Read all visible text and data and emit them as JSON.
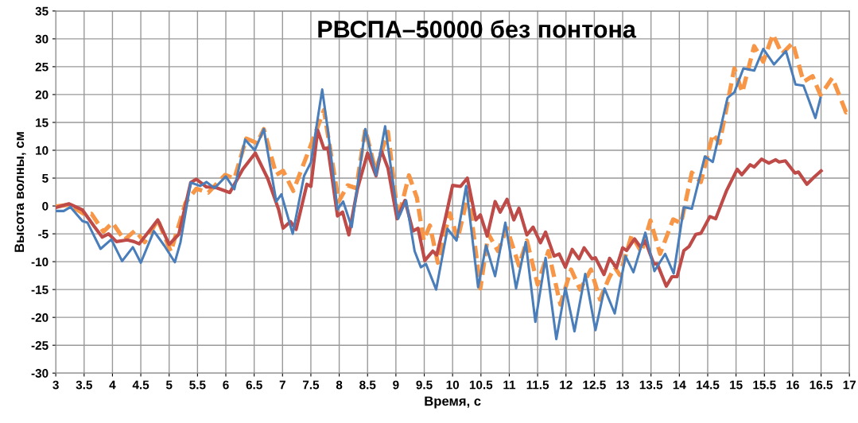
{
  "chart_data": {
    "type": "line",
    "title": "РВСПА–50000 без понтона",
    "xlabel": "Время, с",
    "ylabel": "Высота волны, см",
    "xlim": [
      3,
      17
    ],
    "xticks": [
      3,
      3.5,
      4,
      4.5,
      5,
      5.5,
      6,
      6.5,
      7,
      7.5,
      8,
      8.5,
      9,
      9.5,
      10,
      10.5,
      11,
      11.5,
      12,
      12.5,
      13,
      13.5,
      14,
      14.5,
      15,
      15.5,
      16,
      16.5,
      17
    ],
    "ylim": [
      -30,
      35
    ],
    "yticks": [
      -30,
      -25,
      -20,
      -15,
      -10,
      -5,
      0,
      5,
      10,
      15,
      20,
      25,
      30,
      35
    ],
    "grid": true,
    "legend": false,
    "marker": "none",
    "series": [
      {
        "color": "#4a7ebb",
        "line_style": "solid",
        "x": [
          3,
          3.14,
          3.26,
          3.47,
          3.56,
          3.79,
          3.98,
          4.17,
          4.36,
          4.5,
          4.73,
          4.92,
          5.1,
          5.2,
          5.38,
          5.55,
          5.66,
          5.8,
          6.0,
          6.15,
          6.34,
          6.51,
          6.67,
          6.89,
          6.98,
          7.18,
          7.38,
          7.5,
          7.7,
          7.8,
          7.97,
          8.07,
          8.22,
          8.46,
          8.65,
          8.81,
          9.04,
          9.18,
          9.33,
          9.44,
          9.53,
          9.71,
          9.91,
          10.07,
          10.24,
          10.45,
          10.59,
          10.75,
          10.93,
          11.12,
          11.29,
          11.46,
          11.64,
          11.83,
          11.99,
          12.15,
          12.34,
          12.52,
          12.68,
          12.86,
          13.05,
          13.19,
          13.4,
          13.56,
          13.75,
          13.9,
          14.08,
          14.22,
          14.45,
          14.59,
          14.85,
          14.97,
          15.13,
          15.32,
          15.48,
          15.67,
          15.88,
          16.05,
          16.19,
          16.4,
          16.49
        ],
        "values": [
          -0.9,
          -0.9,
          -0.2,
          -2.7,
          -3,
          -7.7,
          -6,
          -9.9,
          -7.4,
          -10.2,
          -4.5,
          -7.2,
          -10.1,
          -6.5,
          4.2,
          3.6,
          4.3,
          3.2,
          5.3,
          3,
          11.9,
          10,
          13.8,
          0.8,
          2.1,
          -5,
          5.4,
          7.8,
          20.9,
          13.6,
          -0.6,
          0.8,
          -3.8,
          13.8,
          5.5,
          14.3,
          -2.3,
          1,
          -8.1,
          -11,
          -10.4,
          -15,
          -4.1,
          -6.2,
          3.6,
          -14.6,
          -7.1,
          -12.6,
          -3,
          -14.8,
          -6.5,
          -20.8,
          -9.3,
          -23.9,
          -14.7,
          -22.5,
          -12.2,
          -22.3,
          -14.8,
          -19.3,
          -9,
          -11.9,
          -4.8,
          -11.7,
          -8.6,
          -12.1,
          -0.2,
          -0.5,
          8.9,
          7.9,
          19.4,
          20.4,
          24.7,
          24.3,
          28.2,
          25.4,
          27.8,
          21.8,
          21.6,
          15.8,
          19.4
        ]
      },
      {
        "color": "#be4b48",
        "line_style": "solid",
        "x": [
          3,
          3.23,
          3.47,
          3.68,
          3.82,
          3.93,
          4.07,
          4.26,
          4.38,
          4.47,
          4.64,
          4.8,
          5.0,
          5.17,
          5.38,
          5.48,
          5.66,
          5.8,
          6.07,
          6.3,
          6.52,
          6.74,
          6.93,
          7.01,
          7.14,
          7.24,
          7.43,
          7.5,
          7.62,
          7.73,
          7.8,
          7.97,
          8.06,
          8.17,
          8.32,
          8.5,
          8.65,
          8.74,
          8.86,
          9.02,
          9.16,
          9.3,
          9.39,
          9.51,
          9.65,
          9.72,
          9.86,
          10.0,
          10.14,
          10.26,
          10.41,
          10.49,
          10.61,
          10.75,
          10.84,
          10.96,
          11.08,
          11.17,
          11.31,
          11.42,
          11.55,
          11.64,
          11.79,
          11.88,
          11.99,
          12.11,
          12.23,
          12.32,
          12.46,
          12.52,
          12.67,
          12.77,
          12.89,
          13.0,
          13.07,
          13.21,
          13.31,
          13.4,
          13.55,
          13.61,
          13.77,
          13.87,
          13.96,
          14.08,
          14.17,
          14.29,
          14.38,
          14.54,
          14.64,
          14.83,
          15.02,
          15.1,
          15.25,
          15.32,
          15.45,
          15.58,
          15.7,
          15.76,
          15.87,
          16.04,
          16.1,
          16.25,
          16.37,
          16.5
        ],
        "values": [
          -0.3,
          0.4,
          -0.7,
          -3.7,
          -5.6,
          -5,
          -6.4,
          -6.1,
          -6.4,
          -6.8,
          -4.6,
          -2.5,
          -6.9,
          -5.1,
          4.2,
          4.8,
          3.4,
          3.4,
          2.4,
          6.6,
          9.5,
          4.9,
          -0.6,
          -4,
          -2.8,
          -4.2,
          3.9,
          3.5,
          13.6,
          10.3,
          10.4,
          -1.8,
          -1.1,
          -5.2,
          3,
          9.5,
          5.4,
          10,
          6.8,
          -2.3,
          1,
          -4.5,
          -4,
          -9.8,
          -8.1,
          -8.8,
          -2.8,
          3.7,
          3.5,
          5,
          -2.5,
          -1.6,
          -5.4,
          0.8,
          -1.1,
          1.2,
          -2.5,
          -0.4,
          -5.2,
          -3.8,
          -6.6,
          -4.7,
          -9,
          -8.6,
          -11,
          -7.8,
          -9.5,
          -7.5,
          -9.5,
          -9.3,
          -12.3,
          -9.4,
          -11.1,
          -7.5,
          -8,
          -5.9,
          -7.3,
          -6.3,
          -10.4,
          -10.4,
          -14.4,
          -12.7,
          -12.7,
          -8,
          -7.3,
          -5.1,
          -4.9,
          -1.9,
          -2.3,
          2.7,
          6.6,
          5.6,
          7.4,
          7,
          8.4,
          7.7,
          8.3,
          7.9,
          8.1,
          5.9,
          6.1,
          3.9,
          5.1,
          6.3
        ]
      },
      {
        "color": "#f79646",
        "line_style": "dashed",
        "x": [
          3,
          3.23,
          3.51,
          3.63,
          3.84,
          4.0,
          4.21,
          4.4,
          4.57,
          4.8,
          5.03,
          5.29,
          5.48,
          5.69,
          5.99,
          6.15,
          6.36,
          6.55,
          6.67,
          6.89,
          7.01,
          7.19,
          7.48,
          7.73,
          7.99,
          8.15,
          8.3,
          8.46,
          8.64,
          8.86,
          9.04,
          9.23,
          9.37,
          9.49,
          9.6,
          9.74,
          9.95,
          10.09,
          10.28,
          10.49,
          10.63,
          10.8,
          10.96,
          11.17,
          11.31,
          11.5,
          11.69,
          11.9,
          12.09,
          12.25,
          12.44,
          12.6,
          12.76,
          12.86,
          12.95,
          13.16,
          13.33,
          13.49,
          13.66,
          13.89,
          14.03,
          14.22,
          14.38,
          14.59,
          14.71,
          14.97,
          15.11,
          15.32,
          15.48,
          15.65,
          15.81,
          16.0,
          16.19,
          16.35,
          16.49,
          16.7,
          16.94,
          17
        ],
        "values": [
          -0.1,
          0.2,
          -1.5,
          -1.4,
          -4.6,
          -3,
          -6.1,
          -4.4,
          -6.5,
          -2.5,
          -8.2,
          0.6,
          3.1,
          2.4,
          5.6,
          4.9,
          12.1,
          11.3,
          13.8,
          5.6,
          6.3,
          2.7,
          10.4,
          17.2,
          0.8,
          3.7,
          3.2,
          13.8,
          6.3,
          13.3,
          -2.3,
          5.5,
          1.5,
          -6.2,
          -3.5,
          -10.2,
          -1.3,
          -5.9,
          2.3,
          -14.8,
          -5,
          -8.1,
          -4,
          -10.7,
          -6.2,
          -14.1,
          -8.1,
          -17.7,
          -11.4,
          -15,
          -11.4,
          -16.8,
          -12.9,
          -11,
          -12.4,
          -5.2,
          -8.3,
          -2.6,
          -8.6,
          -2.4,
          -3.1,
          6,
          4.3,
          12.9,
          11.3,
          24.7,
          20.4,
          28.7,
          25.9,
          30.8,
          27.3,
          29.3,
          22.3,
          23.3,
          19.9,
          23,
          16.8,
          17.3
        ]
      }
    ]
  }
}
